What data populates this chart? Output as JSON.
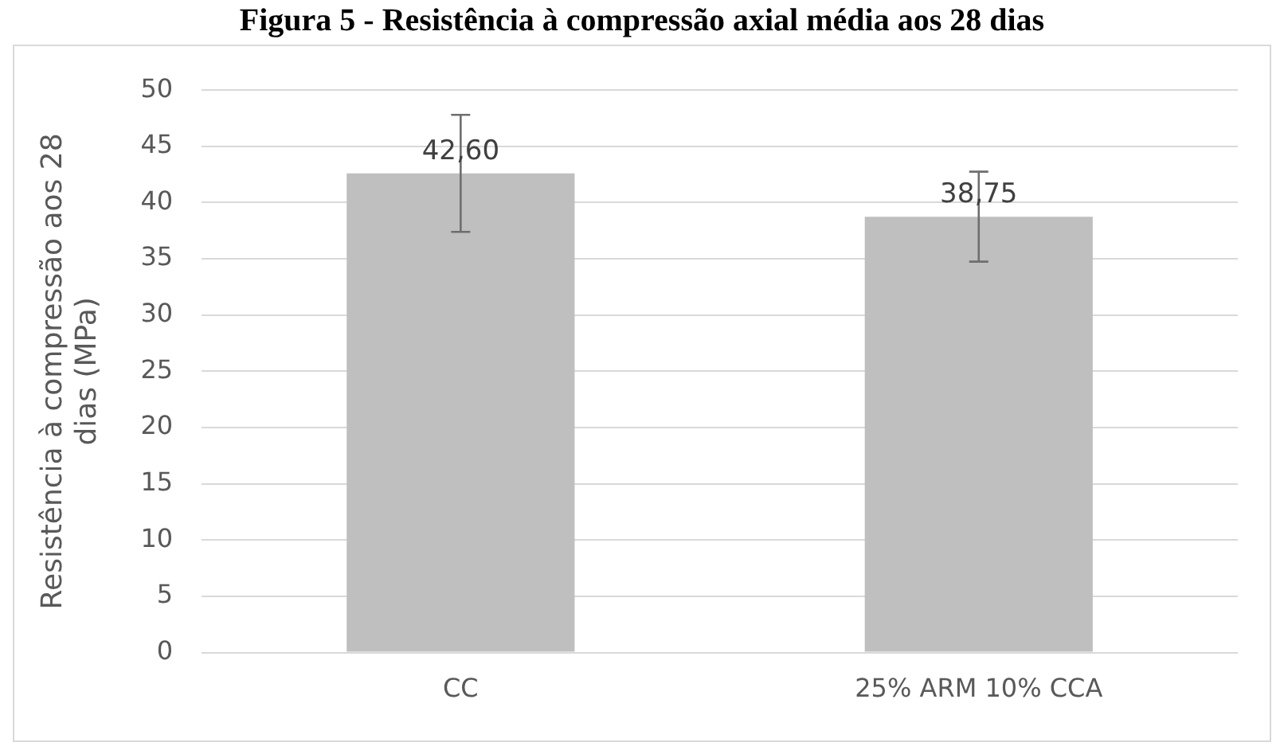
{
  "chart_data": {
    "type": "bar",
    "title": "Figura 5 - Resistência à compressão axial média aos 28 dias",
    "ylabel": "Resistência à compressão aos 28 dias (MPa)",
    "categories": [
      "CC",
      "25% ARM 10% CCA"
    ],
    "values": [
      42.6,
      38.75
    ],
    "color": "#bfbfbf",
    "errors": [
      5.2,
      4.0
    ],
    "value_labels": [
      "42,60",
      "38,75"
    ],
    "ylim": [
      0,
      50
    ],
    "yticks": [
      0,
      5,
      10,
      15,
      20,
      25,
      30,
      35,
      40,
      45,
      50
    ],
    "grid": "y",
    "legend": false
  }
}
